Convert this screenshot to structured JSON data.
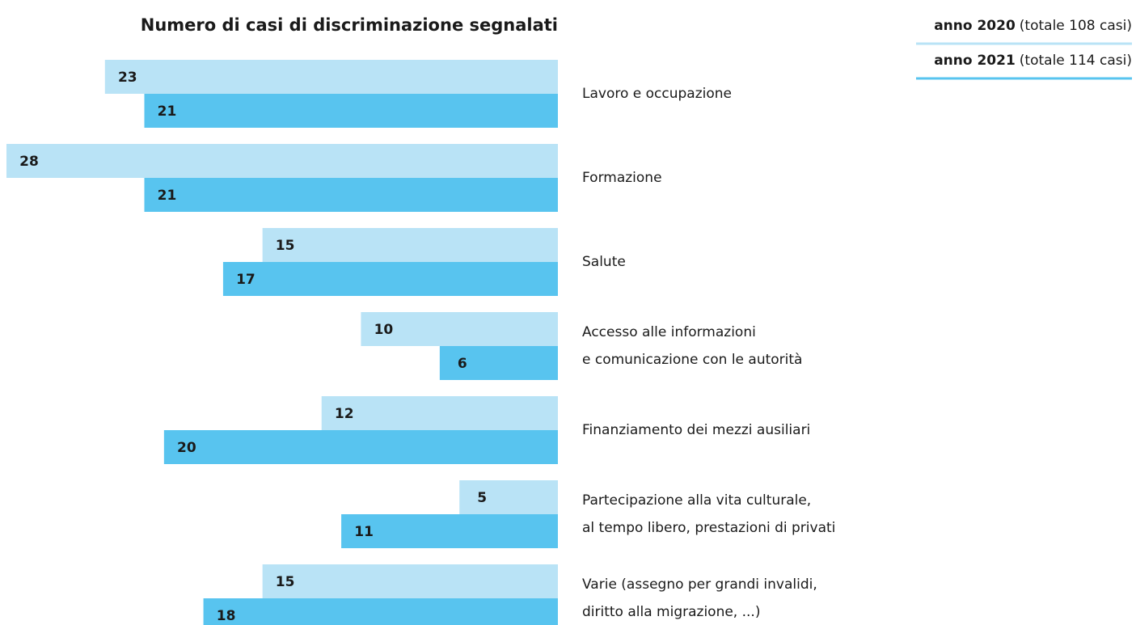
{
  "chart_data": {
    "type": "hbar",
    "title": "Numero di casi di discriminazione segnalati",
    "categories": [
      [
        "Lavoro e occupazione"
      ],
      [
        "Formazione"
      ],
      [
        "Salute"
      ],
      [
        "Accesso alle informazioni",
        "e comunicazione con le autorità"
      ],
      [
        "Finanziamento dei mezzi ausiliari"
      ],
      [
        "Partecipazione alla vita culturale,",
        "al tempo libero, prestazioni di privati"
      ],
      [
        "Varie (assegno per grandi invalidi,",
        "diritto alla migrazione, ...)"
      ]
    ],
    "series": [
      {
        "name": "anno 2020",
        "note": "(totale 108 casi)",
        "color": "#b9e3f6",
        "values": [
          23,
          28,
          15,
          10,
          12,
          5,
          15
        ]
      },
      {
        "name": "anno 2021",
        "note": "(totale 114 casi)",
        "color": "#58c4ef",
        "values": [
          21,
          21,
          17,
          6,
          20,
          11,
          18
        ]
      }
    ],
    "legend": "top-right"
  }
}
